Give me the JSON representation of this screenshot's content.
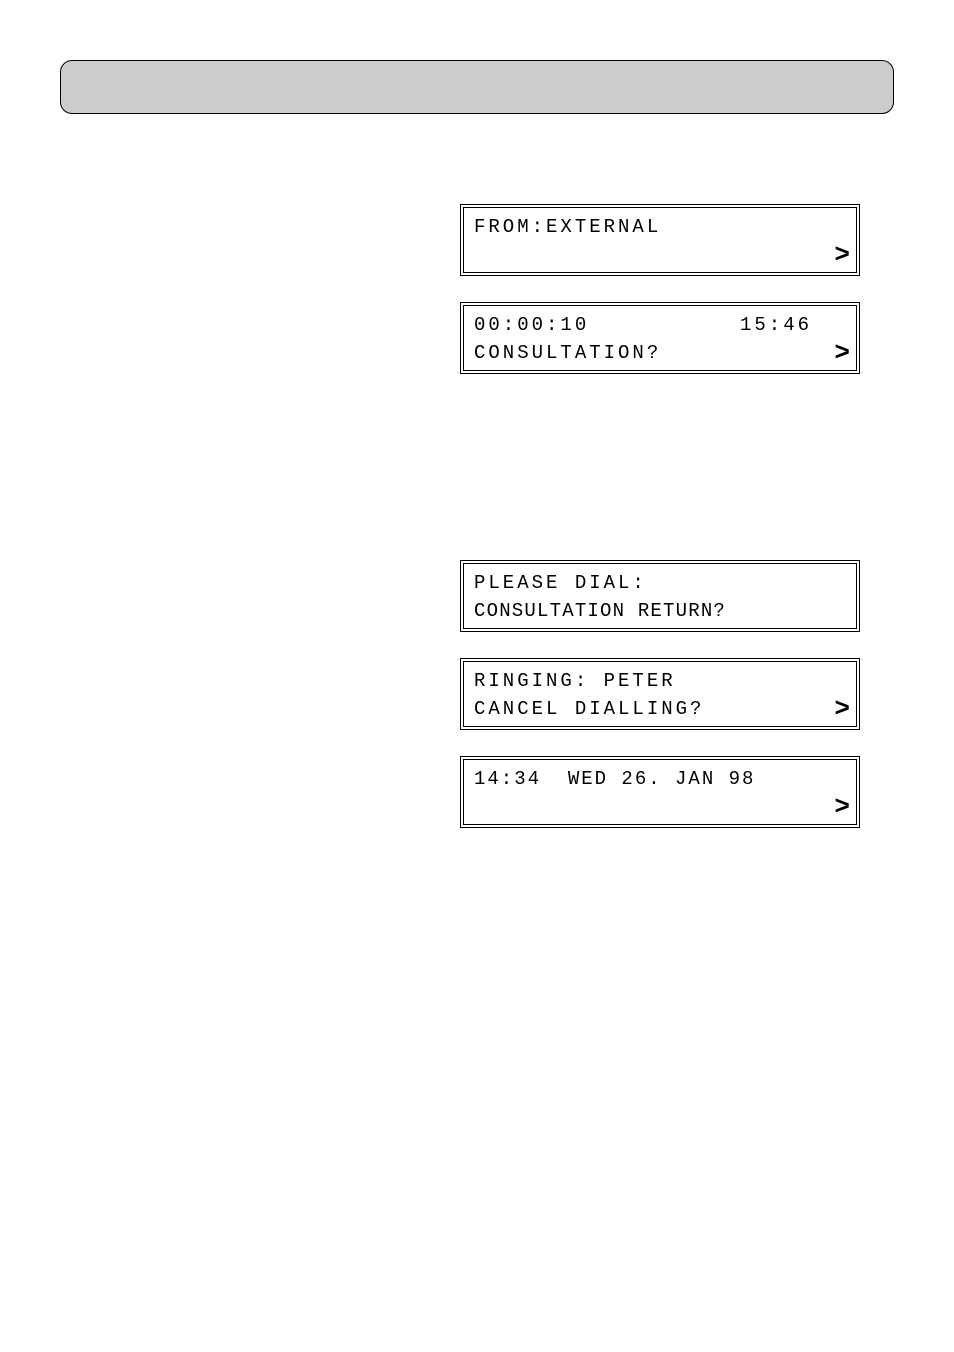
{
  "page": {
    "background": "#ffffff",
    "header_bg": "#cccccc",
    "border_color": "#000000",
    "lcd_font_size": 19,
    "lcd_letter_spacing": 3
  },
  "lcd1": {
    "line1": "FROM:EXTERNAL",
    "line2": "",
    "chevron": ">"
  },
  "lcd2": {
    "line1_left": "00:00:10",
    "line1_right": "15:46",
    "line2": "CONSULTATION?",
    "chevron": ">"
  },
  "lcd3": {
    "line1": "PLEASE DIAL:",
    "line2": "CONSULTATION RETURN?"
  },
  "lcd4": {
    "line1": "RINGING: PETER",
    "line2": "CANCEL DIALLING?",
    "chevron": ">"
  },
  "lcd5": {
    "line1": "14:34  WED 26. JAN 98",
    "line2": "",
    "chevron": ">"
  }
}
